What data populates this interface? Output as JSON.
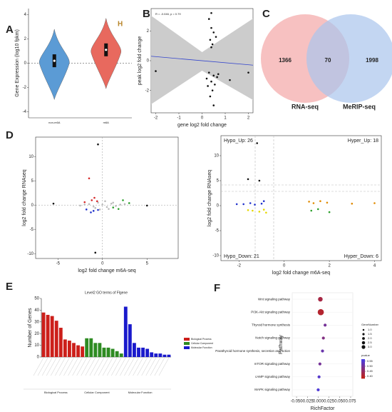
{
  "chart_data": [
    {
      "type": "violin",
      "panel": "A",
      "annotation": "H",
      "ylabel": "Gene Expression (log10 fpkm)",
      "categories": [
        "non-m6A",
        "m6A"
      ],
      "values": [
        0.2,
        1.1
      ],
      "colors": [
        "#5b9bd5",
        "#e8695e"
      ],
      "ylim": [
        -4.5,
        4.5
      ],
      "yticks": [
        -4,
        -2,
        0,
        2,
        4
      ]
    },
    {
      "type": "scatter",
      "panel": "B",
      "annotation": "R = -0.046, p = 0.79",
      "xlabel": "gene log2 fold change",
      "ylabel": "peak log2 fold change",
      "x": [
        0.3,
        0.4,
        0.5,
        0.35,
        0.45,
        0.6,
        0.4,
        0.3,
        0.5,
        0.2,
        0.7,
        0.4,
        0.55,
        0.25,
        0.65,
        0.45,
        0.35,
        0.5,
        -2.0,
        1.2,
        2.0,
        0.4
      ],
      "y": [
        2.8,
        2.2,
        1.9,
        1.4,
        1.1,
        1.6,
        0.9,
        -0.8,
        -1.0,
        -1.2,
        -0.9,
        -1.4,
        -1.6,
        -1.7,
        -1.1,
        -2.0,
        -2.4,
        -3.0,
        -0.7,
        -1.3,
        -0.8,
        3.2
      ],
      "color": "#111111",
      "fit": {
        "x": [
          -2.2,
          2.2
        ],
        "y": [
          0.3,
          -0.3
        ]
      },
      "fit_color": "#3344cc",
      "xlim": [
        -2.2,
        2.2
      ],
      "ylim": [
        -3.5,
        3.5
      ],
      "xticks": [
        -2,
        -1,
        0,
        1,
        2
      ],
      "yticks": [
        -2,
        0,
        2
      ]
    },
    {
      "type": "venn",
      "panel": "C",
      "sets": [
        "RNA-seq",
        "MeRIP-seq"
      ],
      "values": [
        1366,
        70,
        1998
      ],
      "colors": [
        "#f4a6a6",
        "#a9c4ec"
      ]
    },
    {
      "type": "scatter",
      "panel": "D",
      "xlabel": "log2 fold change m6A-seq",
      "ylabel": "log2 fold change RNAseq",
      "series": [
        {
          "color": "#bbbbbb",
          "x": [
            -1.5,
            -1,
            -0.5,
            0,
            0.5,
            1,
            1.5,
            2,
            -2,
            0.3,
            -0.8,
            1.2,
            0.7,
            -0.3,
            2.5,
            -2.5
          ],
          "y": [
            0.2,
            -0.3,
            0.5,
            0.1,
            -0.4,
            0.3,
            -0.2,
            0.1,
            0.1,
            0.8,
            -0.6,
            0.5,
            -0.8,
            -0.9,
            0.2,
            -0.1
          ]
        },
        {
          "color": "#d62728",
          "x": [
            -1.2,
            -0.9,
            -0.6,
            -1.5,
            -2
          ],
          "y": [
            1,
            1.5,
            0.8,
            5.5,
            0.6
          ]
        },
        {
          "color": "#2ca02c",
          "x": [
            1.2,
            1.8,
            2.3,
            3
          ],
          "y": [
            -0.5,
            -0.8,
            1,
            0.4
          ]
        },
        {
          "color": "#2233cc",
          "x": [
            -1,
            -0.5,
            -1.8,
            -1.3
          ],
          "y": [
            -1.2,
            -1,
            -0.9,
            -1.5
          ]
        },
        {
          "color": "#111111",
          "x": [
            -0.5,
            -0.8,
            -5.5,
            5
          ],
          "y": [
            12.5,
            -9.8,
            0.3,
            -0.1
          ]
        }
      ],
      "xlim": [
        -7.5,
        8.5
      ],
      "ylim": [
        -11,
        14
      ],
      "xticks": [
        -5,
        0,
        5
      ],
      "yticks": [
        -10,
        -5,
        0,
        5,
        10
      ]
    },
    {
      "type": "scatter",
      "annotations": [
        "Hypo_Up: 26",
        "Hyper_Up: 18",
        "Hypo_Down: 21",
        "Hyper_Down: 6"
      ],
      "xlabel": "log2 fold change m6A-seq",
      "ylabel": "log2 fold change RNAseq",
      "series": [
        {
          "color": "#111111",
          "x": [
            -1.2,
            -1.6,
            -1.1
          ],
          "y": [
            12.5,
            5.3,
            5.0
          ]
        },
        {
          "color": "#2233cc",
          "x": [
            -1.8,
            -1.5,
            -1.3,
            -1.0,
            -0.9,
            -2.1
          ],
          "y": [
            0.3,
            0.5,
            0.2,
            0.4,
            0.9,
            0.3
          ]
        },
        {
          "color": "#e6d800",
          "x": [
            -1.4,
            -1.1,
            -0.9,
            -0.8,
            -1.6
          ],
          "y": [
            -1.0,
            -1.2,
            -0.8,
            -1.4,
            -0.9
          ]
        },
        {
          "color": "#e08a00",
          "x": [
            1.1,
            1.3,
            1.6,
            1.9,
            3.0,
            4.0
          ],
          "y": [
            0.8,
            0.5,
            0.9,
            0.6,
            0.4,
            0.5
          ]
        },
        {
          "color": "#2ca02c",
          "x": [
            1.2,
            1.5,
            2.0
          ],
          "y": [
            -1.0,
            -0.7,
            -1.3
          ]
        }
      ],
      "xlim": [
        -2.8,
        4.3
      ],
      "ylim": [
        -11,
        14
      ],
      "xticks": [
        -2,
        0,
        2,
        4
      ],
      "yticks": [
        -10,
        -5,
        0,
        5,
        10
      ]
    },
    {
      "type": "bar",
      "panel": "E",
      "title": "Level2 GO terms of Flgene",
      "ylabel": "Number of Genes",
      "categories": [
        null,
        null,
        null,
        null,
        null,
        null,
        null,
        null,
        null,
        null,
        null,
        null,
        null,
        null,
        null,
        null,
        null,
        null,
        null,
        null,
        null,
        null,
        null,
        null,
        null,
        null,
        null,
        null,
        null,
        null
      ],
      "series": [
        {
          "name": "Biological Process",
          "color": "#cc1f1a",
          "values": [
            38,
            36,
            35,
            31,
            25,
            15,
            14,
            12,
            10,
            9,
            null,
            null,
            null,
            null,
            null,
            null,
            null,
            null,
            null,
            null,
            null,
            null,
            null,
            null,
            null,
            null,
            null,
            null,
            null,
            null
          ]
        },
        {
          "name": "Cellular Component",
          "color": "#2e8b22",
          "values": [
            null,
            null,
            null,
            null,
            null,
            null,
            null,
            null,
            null,
            null,
            16,
            16,
            12,
            12,
            8,
            8,
            7,
            5,
            3,
            null,
            null,
            null,
            null,
            null,
            null,
            null,
            null,
            null,
            null,
            null
          ]
        },
        {
          "name": "Molecular Function",
          "color": "#1a1acc",
          "values": [
            null,
            null,
            null,
            null,
            null,
            null,
            null,
            null,
            null,
            null,
            null,
            null,
            null,
            null,
            null,
            null,
            null,
            null,
            null,
            43,
            28,
            12,
            8,
            8,
            7,
            4,
            3,
            3,
            2,
            2
          ]
        }
      ],
      "ylim": [
        0,
        50
      ],
      "yticks": [
        0,
        10,
        20,
        30,
        40,
        50
      ]
    },
    {
      "type": "dot",
      "panel": "F",
      "xlabel": "RichFactor",
      "ylabel": "Pathway",
      "categories": [
        "Wnt signaling pathway",
        "PI3K-Akt signaling pathway",
        "Thyroid hormone synthesis",
        "Notch signaling pathway",
        "Parathyroid hormone synthesis, secretion and action",
        "mTOR signaling pathway",
        "cAMP signaling pathway",
        "MAPK signaling pathway"
      ],
      "values": [
        0.005,
        0.006,
        0.016,
        0.012,
        0.01,
        0.004,
        0.002,
        0.0
      ],
      "sizes": [
        2,
        3,
        1,
        1,
        1,
        1,
        1,
        1
      ],
      "pvalues": [
        0.42,
        0.4,
        0.5,
        0.48,
        0.52,
        0.5,
        0.55,
        0.56
      ],
      "xlim": [
        -0.06,
        0.08
      ],
      "xticks": [
        {
          "value": -0.05,
          "label": "-0.050"
        },
        {
          "value": -0.025,
          "label": "-0.025"
        },
        {
          "value": 0,
          "label": "0.000"
        },
        {
          "value": 0.025,
          "label": "0.025"
        },
        {
          "value": 0.05,
          "label": "0.050"
        },
        {
          "value": 0.075,
          "label": "0.075"
        }
      ],
      "size_title": "GeneNumber",
      "size_ticks": [
        {
          "value": 1,
          "label": "1.0"
        },
        {
          "value": 1.5,
          "label": "1.5"
        },
        {
          "value": 2,
          "label": "2.0"
        },
        {
          "value": 2.5,
          "label": "2.5"
        },
        {
          "value": 3,
          "label": "3.0"
        }
      ],
      "color_title": "pvalue",
      "color_ticks": [
        0.55,
        {
          "value": 0.5,
          "label": "0.50"
        },
        0.45,
        {
          "value": 0.4,
          "label": "0.40"
        }
      ],
      "color_lim": [
        0.38,
        0.57
      ],
      "colors": [
        "#c0221a",
        "#4a3ce0"
      ]
    }
  ]
}
